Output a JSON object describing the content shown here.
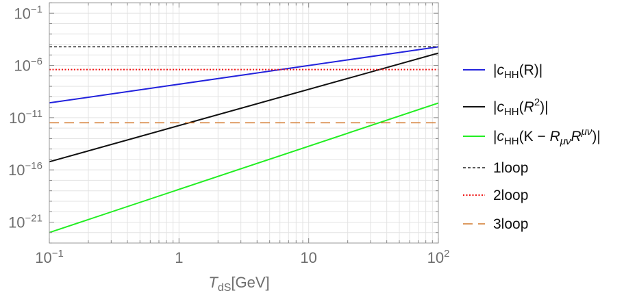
{
  "chart_data": {
    "type": "line",
    "xscale": "log",
    "yscale": "log",
    "xlim": [
      0.1,
      100
    ],
    "ylim": [
      1e-23,
      1
    ],
    "grid": true,
    "legend_position": "right",
    "xlabel": {
      "main": "T",
      "sub": "dS",
      "rest": "[GeV]"
    },
    "ylabel": "",
    "xticks": [
      {
        "value": 0.1,
        "base": "10",
        "exp": "−1"
      },
      {
        "value": 1,
        "base": "1",
        "exp": ""
      },
      {
        "value": 10,
        "base": "10",
        "exp": ""
      },
      {
        "value": 100,
        "base": "10",
        "exp": "2"
      }
    ],
    "yticks": [
      {
        "value": 0.1,
        "base": "10",
        "exp": "−1"
      },
      {
        "value": 1e-06,
        "base": "10",
        "exp": "−6"
      },
      {
        "value": 1e-11,
        "base": "10",
        "exp": "−11"
      },
      {
        "value": 1e-16,
        "base": "10",
        "exp": "−16"
      },
      {
        "value": 1e-21,
        "base": "10",
        "exp": "−21"
      }
    ],
    "series": [
      {
        "key": "cHH-R",
        "color": "#2222dd",
        "dash": "",
        "width": 2,
        "x": [
          0.1,
          100
        ],
        "y": [
          2.6e-10,
          6e-05
        ],
        "legend": [
          {
            "t": "|"
          },
          {
            "t": "c",
            "i": true
          },
          {
            "t": "HH",
            "sub": true
          },
          {
            "t": "(R)|"
          }
        ]
      },
      {
        "key": "cHH-R2",
        "color": "#111111",
        "dash": "",
        "width": 2,
        "x": [
          0.1,
          100
        ],
        "y": [
          6e-16,
          1.5e-05
        ],
        "legend": [
          {
            "t": "|"
          },
          {
            "t": "c",
            "i": true
          },
          {
            "t": "HH",
            "sub": true
          },
          {
            "t": "("
          },
          {
            "t": "R",
            "i": true
          },
          {
            "t": "2",
            "sup": true
          },
          {
            "t": ")|"
          }
        ]
      },
      {
        "key": "cHH-K",
        "color": "#22ee22",
        "dash": "",
        "width": 2,
        "x": [
          0.1,
          100
        ],
        "y": [
          1e-22,
          2.5e-10
        ],
        "legend": [
          {
            "t": "|"
          },
          {
            "t": "c",
            "i": true
          },
          {
            "t": "HH",
            "sub": true
          },
          {
            "t": "(K − "
          },
          {
            "t": "R",
            "i": true
          },
          {
            "t": "μν",
            "sub": true,
            "i": true
          },
          {
            "t": "R",
            "i": true
          },
          {
            "t": "μν",
            "sup": true,
            "i": true
          },
          {
            "t": ")|"
          }
        ]
      },
      {
        "key": "1loop",
        "color": "#222222",
        "dash": "4,3",
        "width": 1.5,
        "x": [
          0.1,
          100
        ],
        "y": [
          6e-05,
          6e-05
        ],
        "legend": [
          {
            "t": "1loop"
          }
        ]
      },
      {
        "key": "2loop",
        "color": "#ee1111",
        "dash": "2,2.5",
        "width": 2,
        "x": [
          0.1,
          100
        ],
        "y": [
          4e-07,
          4e-07
        ],
        "legend": [
          {
            "t": "2loop"
          }
        ]
      },
      {
        "key": "3loop",
        "color": "#d2782c",
        "dash": "14,8",
        "width": 1.5,
        "x": [
          0.1,
          100
        ],
        "y": [
          3.2e-12,
          3.2e-12
        ],
        "legend": [
          {
            "t": "3loop"
          }
        ]
      }
    ]
  }
}
